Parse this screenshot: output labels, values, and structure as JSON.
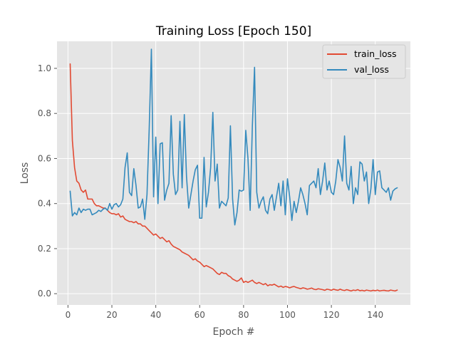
{
  "chart_data": {
    "type": "line",
    "title": "Training Loss [Epoch 150]",
    "xlabel": "Epoch #",
    "ylabel": "Loss",
    "xlim": [
      -5,
      156
    ],
    "ylim": [
      -0.05,
      1.12
    ],
    "xticks": [
      0,
      20,
      40,
      60,
      80,
      100,
      120,
      140
    ],
    "yticks": [
      0.0,
      0.2,
      0.4,
      0.6,
      0.8,
      1.0
    ],
    "xtick_labels": [
      "0",
      "20",
      "40",
      "60",
      "80",
      "100",
      "120",
      "140"
    ],
    "ytick_labels": [
      "0.0",
      "0.2",
      "0.4",
      "0.6",
      "0.8",
      "1.0"
    ],
    "grid": true,
    "legend_position": "top-right",
    "x": [
      1,
      2,
      3,
      4,
      5,
      6,
      7,
      8,
      9,
      10,
      11,
      12,
      13,
      14,
      15,
      16,
      17,
      18,
      19,
      20,
      21,
      22,
      23,
      24,
      25,
      26,
      27,
      28,
      29,
      30,
      31,
      32,
      33,
      34,
      35,
      36,
      37,
      38,
      39,
      40,
      41,
      42,
      43,
      44,
      45,
      46,
      47,
      48,
      49,
      50,
      51,
      52,
      53,
      54,
      55,
      56,
      57,
      58,
      59,
      60,
      61,
      62,
      63,
      64,
      65,
      66,
      67,
      68,
      69,
      70,
      71,
      72,
      73,
      74,
      75,
      76,
      77,
      78,
      79,
      80,
      81,
      82,
      83,
      84,
      85,
      86,
      87,
      88,
      89,
      90,
      91,
      92,
      93,
      94,
      95,
      96,
      97,
      98,
      99,
      100,
      101,
      102,
      103,
      104,
      105,
      106,
      107,
      108,
      109,
      110,
      111,
      112,
      113,
      114,
      115,
      116,
      117,
      118,
      119,
      120,
      121,
      122,
      123,
      124,
      125,
      126,
      127,
      128,
      129,
      130,
      131,
      132,
      133,
      134,
      135,
      136,
      137,
      138,
      139,
      140,
      141,
      142,
      143,
      144,
      145,
      146,
      147,
      148,
      149,
      150
    ],
    "series": [
      {
        "name": "train_loss",
        "color": "#E24A33",
        "values": [
          1.02,
          0.68,
          0.56,
          0.5,
          0.49,
          0.46,
          0.45,
          0.46,
          0.42,
          0.42,
          0.42,
          0.4,
          0.39,
          0.39,
          0.385,
          0.38,
          0.38,
          0.37,
          0.36,
          0.355,
          0.355,
          0.35,
          0.355,
          0.34,
          0.345,
          0.33,
          0.325,
          0.32,
          0.32,
          0.315,
          0.32,
          0.31,
          0.31,
          0.3,
          0.3,
          0.29,
          0.28,
          0.27,
          0.26,
          0.265,
          0.255,
          0.245,
          0.25,
          0.24,
          0.23,
          0.235,
          0.22,
          0.21,
          0.205,
          0.2,
          0.195,
          0.185,
          0.18,
          0.175,
          0.17,
          0.16,
          0.15,
          0.155,
          0.145,
          0.14,
          0.13,
          0.12,
          0.125,
          0.12,
          0.115,
          0.11,
          0.1,
          0.09,
          0.085,
          0.095,
          0.09,
          0.09,
          0.08,
          0.075,
          0.065,
          0.06,
          0.055,
          0.06,
          0.07,
          0.05,
          0.055,
          0.05,
          0.055,
          0.06,
          0.05,
          0.045,
          0.05,
          0.045,
          0.04,
          0.045,
          0.035,
          0.04,
          0.038,
          0.042,
          0.036,
          0.03,
          0.034,
          0.028,
          0.032,
          0.03,
          0.026,
          0.03,
          0.032,
          0.028,
          0.025,
          0.022,
          0.026,
          0.024,
          0.02,
          0.022,
          0.025,
          0.02,
          0.018,
          0.022,
          0.02,
          0.018,
          0.015,
          0.02,
          0.018,
          0.015,
          0.02,
          0.017,
          0.015,
          0.02,
          0.016,
          0.014,
          0.018,
          0.015,
          0.012,
          0.016,
          0.014,
          0.018,
          0.013,
          0.015,
          0.012,
          0.016,
          0.014,
          0.012,
          0.015,
          0.013,
          0.016,
          0.012,
          0.014,
          0.015,
          0.013,
          0.012,
          0.016,
          0.014,
          0.012,
          0.016
        ]
      },
      {
        "name": "val_loss",
        "color": "#348ABD",
        "values": [
          0.455,
          0.345,
          0.36,
          0.35,
          0.38,
          0.36,
          0.375,
          0.37,
          0.375,
          0.375,
          0.35,
          0.355,
          0.36,
          0.37,
          0.365,
          0.375,
          0.38,
          0.37,
          0.4,
          0.375,
          0.395,
          0.4,
          0.385,
          0.395,
          0.42,
          0.56,
          0.625,
          0.45,
          0.435,
          0.555,
          0.48,
          0.38,
          0.385,
          0.42,
          0.33,
          0.44,
          0.73,
          1.085,
          0.43,
          0.695,
          0.4,
          0.665,
          0.67,
          0.415,
          0.46,
          0.49,
          0.79,
          0.53,
          0.44,
          0.46,
          0.765,
          0.47,
          0.795,
          0.52,
          0.38,
          0.44,
          0.5,
          0.55,
          0.57,
          0.335,
          0.335,
          0.605,
          0.385,
          0.45,
          0.56,
          0.805,
          0.5,
          0.575,
          0.38,
          0.41,
          0.4,
          0.39,
          0.425,
          0.745,
          0.42,
          0.305,
          0.36,
          0.46,
          0.455,
          0.46,
          0.725,
          0.6,
          0.37,
          0.745,
          1.005,
          0.45,
          0.38,
          0.41,
          0.43,
          0.37,
          0.355,
          0.42,
          0.44,
          0.37,
          0.43,
          0.49,
          0.39,
          0.5,
          0.35,
          0.51,
          0.43,
          0.325,
          0.41,
          0.36,
          0.41,
          0.47,
          0.44,
          0.4,
          0.35,
          0.48,
          0.49,
          0.5,
          0.47,
          0.555,
          0.44,
          0.5,
          0.58,
          0.46,
          0.5,
          0.45,
          0.44,
          0.5,
          0.595,
          0.56,
          0.5,
          0.7,
          0.49,
          0.46,
          0.565,
          0.4,
          0.47,
          0.44,
          0.585,
          0.575,
          0.5,
          0.54,
          0.4,
          0.465,
          0.595,
          0.44,
          0.54,
          0.545,
          0.47,
          0.46,
          0.45,
          0.47,
          0.415,
          0.455,
          0.465,
          0.47
        ]
      }
    ]
  }
}
